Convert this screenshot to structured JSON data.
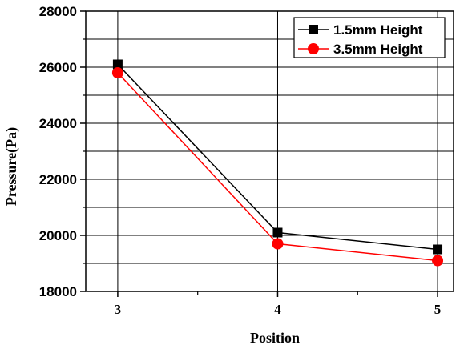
{
  "chart_data": {
    "type": "line",
    "title": "",
    "xlabel": "Position",
    "ylabel": "Pressure(Pa)",
    "x": [
      3,
      4,
      5
    ],
    "xticks": [
      "3",
      "4",
      "5"
    ],
    "xlim": [
      2.8,
      5.1
    ],
    "ylim": [
      18000,
      28000
    ],
    "yticks": [
      "18000",
      "20000",
      "22000",
      "24000",
      "26000",
      "28000"
    ],
    "grid": true,
    "legend": "top-right",
    "series": [
      {
        "name": "1.5mm Height",
        "values": [
          26100,
          20100,
          19500
        ],
        "color": "#000000",
        "marker": "square"
      },
      {
        "name": "3.5mm Height",
        "values": [
          25800,
          19700,
          19100
        ],
        "color": "#ff0000",
        "marker": "circle"
      }
    ]
  }
}
